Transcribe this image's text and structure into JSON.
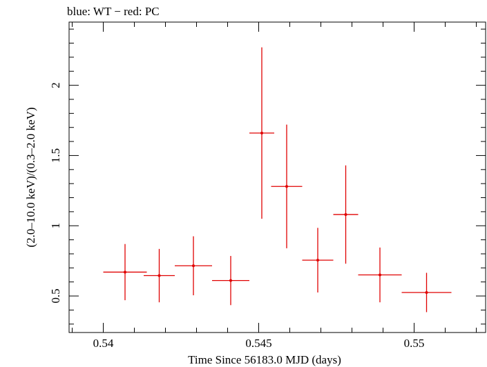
{
  "chart_data": {
    "type": "scatter",
    "title": "blue: WT − red: PC",
    "xlabel": "Time Since 56183.0 MJD (days)",
    "ylabel": "(2.0–10.0 keV)/(0.3–2.0 keV)",
    "xlim": [
      0.5389,
      0.5523
    ],
    "ylim": [
      0.24,
      2.45
    ],
    "x_ticks": [
      0.54,
      0.545,
      0.55
    ],
    "x_tick_labels": [
      "0.54",
      "0.545",
      "0.55"
    ],
    "y_ticks": [
      0.5,
      1,
      1.5,
      2
    ],
    "y_tick_labels": [
      "0.5",
      "1",
      "1.5",
      "2"
    ],
    "x_minor_step": 0.001,
    "y_minor_step": 0.1,
    "grid": false,
    "series": [
      {
        "color": "#e00000",
        "points": [
          {
            "x": 0.5407,
            "xerr": 0.0007,
            "y": 0.67,
            "yerr": 0.2
          },
          {
            "x": 0.5418,
            "xerr": 0.0005,
            "y": 0.645,
            "yerr": 0.19
          },
          {
            "x": 0.5429,
            "xerr": 0.0006,
            "y": 0.715,
            "yerr": 0.21
          },
          {
            "x": 0.5441,
            "xerr": 0.0006,
            "y": 0.61,
            "yerr": 0.175
          },
          {
            "x": 0.5451,
            "xerr": 0.0004,
            "y": 1.66,
            "yerr": 0.61
          },
          {
            "x": 0.5459,
            "xerr": 0.0005,
            "y": 1.28,
            "yerr": 0.44
          },
          {
            "x": 0.5469,
            "xerr": 0.0005,
            "y": 0.755,
            "yerr": 0.23
          },
          {
            "x": 0.5478,
            "xerr": 0.0004,
            "y": 1.08,
            "yerr": 0.35
          },
          {
            "x": 0.5489,
            "xerr": 0.0007,
            "y": 0.65,
            "yerr": 0.195
          },
          {
            "x": 0.5504,
            "xerr": 0.0008,
            "y": 0.525,
            "yerr": 0.14
          }
        ]
      }
    ]
  }
}
